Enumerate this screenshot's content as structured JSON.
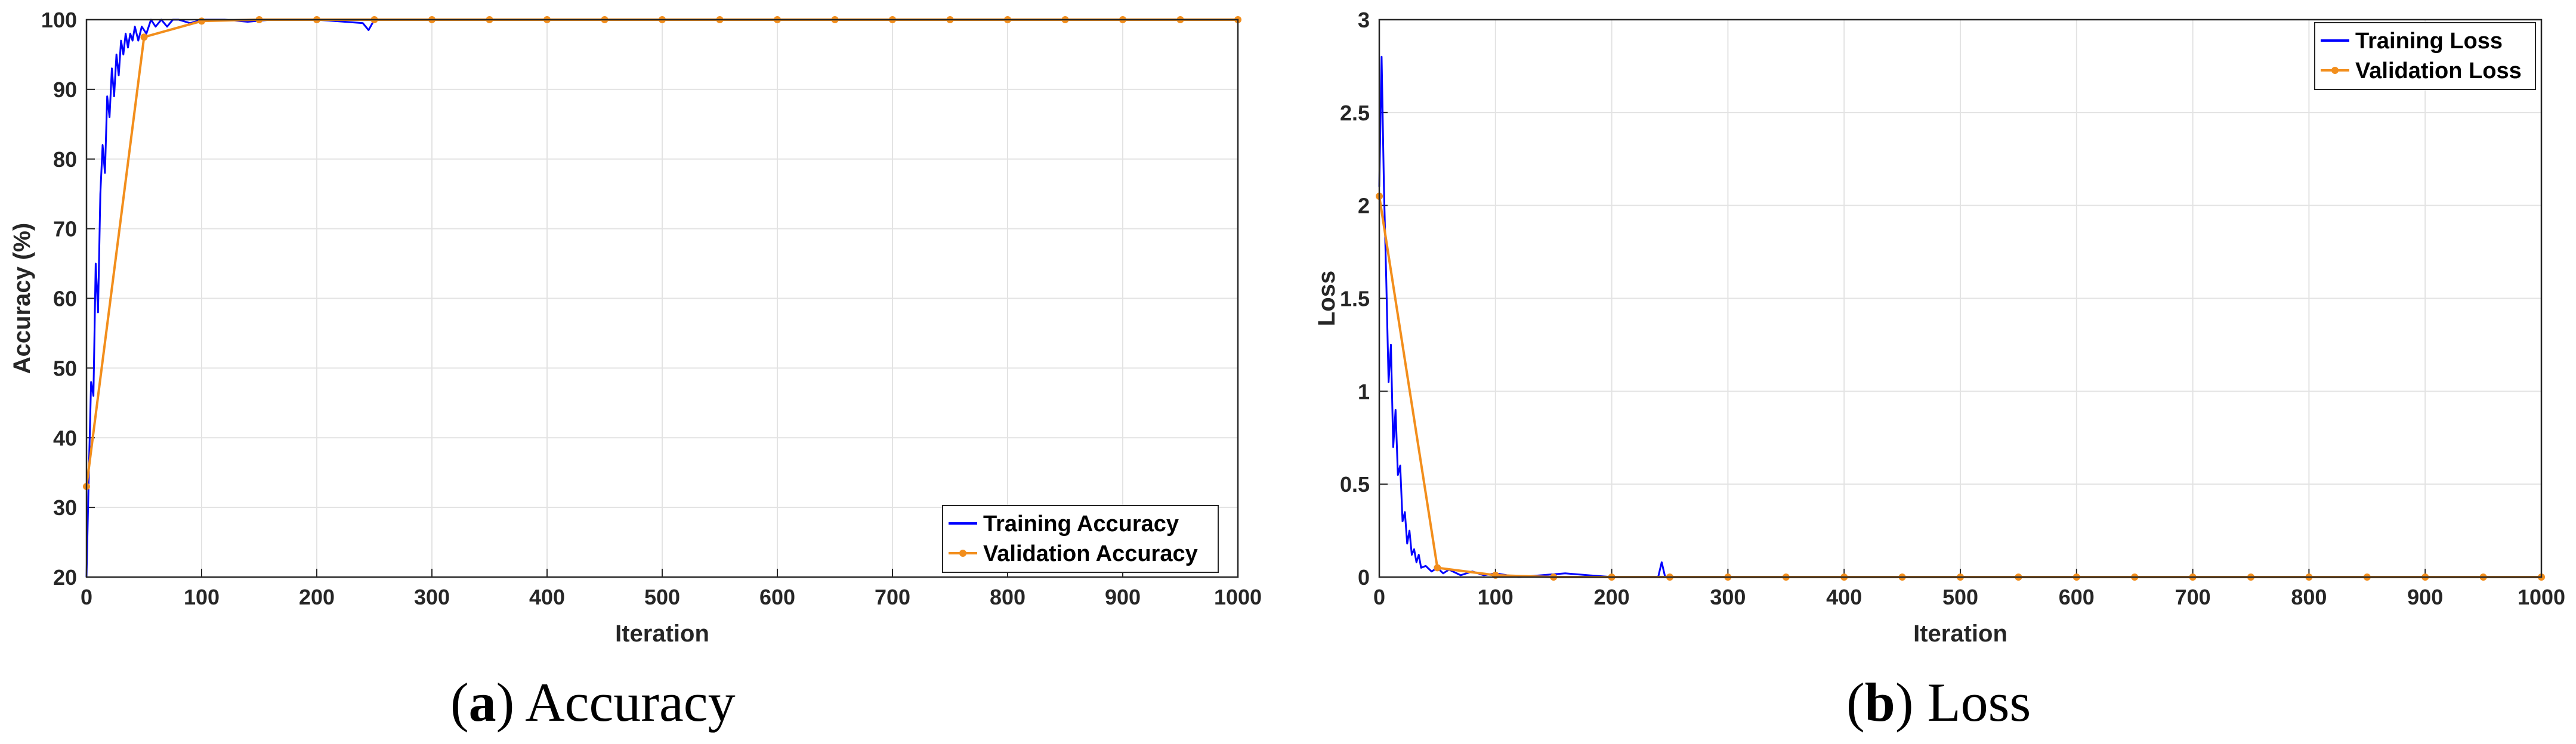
{
  "chart_data": [
    {
      "type": "line",
      "xlabel": "Iteration",
      "ylabel": "Accuracy (%)",
      "xlim": [
        0,
        1000
      ],
      "ylim": [
        20,
        100
      ],
      "xticks": [
        0,
        100,
        200,
        300,
        400,
        500,
        600,
        700,
        800,
        900,
        1000
      ],
      "yticks": [
        20,
        30,
        40,
        50,
        60,
        70,
        80,
        90,
        100
      ],
      "grid": true,
      "legend_position": "bottom-right",
      "series": [
        {
          "name": "Training Accuracy",
          "color": "#0000ff",
          "x": [
            0,
            2,
            4,
            6,
            8,
            10,
            12,
            14,
            16,
            18,
            20,
            22,
            24,
            26,
            28,
            30,
            32,
            34,
            36,
            38,
            40,
            42,
            45,
            48,
            52,
            56,
            60,
            65,
            70,
            75,
            80,
            90,
            100,
            120,
            140,
            160,
            200,
            240,
            245,
            250,
            300,
            400,
            500,
            600,
            700,
            800,
            900,
            1000
          ],
          "y": [
            20,
            35,
            48,
            46,
            65,
            58,
            75,
            82,
            78,
            89,
            86,
            93,
            89,
            95,
            92,
            97,
            95,
            98,
            96,
            98,
            97,
            99,
            97,
            99,
            98,
            100,
            99,
            100,
            99,
            100,
            100,
            99.5,
            100,
            100,
            99.7,
            100,
            100,
            99.5,
            98.5,
            100,
            100,
            100,
            100,
            100,
            100,
            100,
            100,
            100
          ]
        },
        {
          "name": "Validation Accuracy",
          "color": "#f28e1c",
          "x": [
            0,
            50,
            100,
            150,
            200,
            250,
            300,
            350,
            400,
            450,
            500,
            550,
            600,
            650,
            700,
            750,
            800,
            850,
            900,
            950,
            1000
          ],
          "y": [
            33,
            97.5,
            99.8,
            100,
            100,
            100,
            100,
            100,
            100,
            100,
            100,
            100,
            100,
            100,
            100,
            100,
            100,
            100,
            100,
            100,
            100
          ]
        }
      ]
    },
    {
      "type": "line",
      "xlabel": "Iteration",
      "ylabel": "Loss",
      "xlim": [
        0,
        1000
      ],
      "ylim": [
        0,
        3
      ],
      "xticks": [
        0,
        100,
        200,
        300,
        400,
        500,
        600,
        700,
        800,
        900,
        1000
      ],
      "yticks": [
        0,
        0.5,
        1,
        1.5,
        2,
        2.5,
        3
      ],
      "grid": true,
      "legend_position": "top-right",
      "series": [
        {
          "name": "Training Loss",
          "color": "#0000ff",
          "x": [
            0,
            2,
            4,
            6,
            8,
            10,
            12,
            14,
            16,
            18,
            20,
            22,
            24,
            26,
            28,
            30,
            32,
            34,
            36,
            40,
            45,
            50,
            55,
            60,
            70,
            80,
            90,
            100,
            120,
            140,
            160,
            200,
            240,
            243,
            246,
            250,
            300,
            400,
            500,
            600,
            700,
            800,
            900,
            1000
          ],
          "y": [
            2.1,
            2.8,
            2.1,
            1.6,
            1.05,
            1.25,
            0.7,
            0.9,
            0.55,
            0.6,
            0.3,
            0.35,
            0.18,
            0.25,
            0.12,
            0.15,
            0.08,
            0.12,
            0.05,
            0.06,
            0.03,
            0.05,
            0.02,
            0.04,
            0.01,
            0.03,
            0.01,
            0.02,
            0,
            0.01,
            0.02,
            0,
            0,
            0.08,
            0,
            0,
            0,
            0,
            0,
            0,
            0,
            0,
            0,
            0
          ]
        },
        {
          "name": "Validation Loss",
          "color": "#f28e1c",
          "x": [
            0,
            50,
            100,
            150,
            200,
            250,
            300,
            350,
            400,
            450,
            500,
            550,
            600,
            650,
            700,
            750,
            800,
            850,
            900,
            950,
            1000
          ],
          "y": [
            2.05,
            0.05,
            0.01,
            0,
            0,
            0,
            0,
            0,
            0,
            0,
            0,
            0,
            0,
            0,
            0,
            0,
            0,
            0,
            0,
            0,
            0
          ]
        }
      ]
    }
  ],
  "captions": [
    {
      "label": "a",
      "text": "Accuracy"
    },
    {
      "label": "b",
      "text": "Loss"
    }
  ]
}
